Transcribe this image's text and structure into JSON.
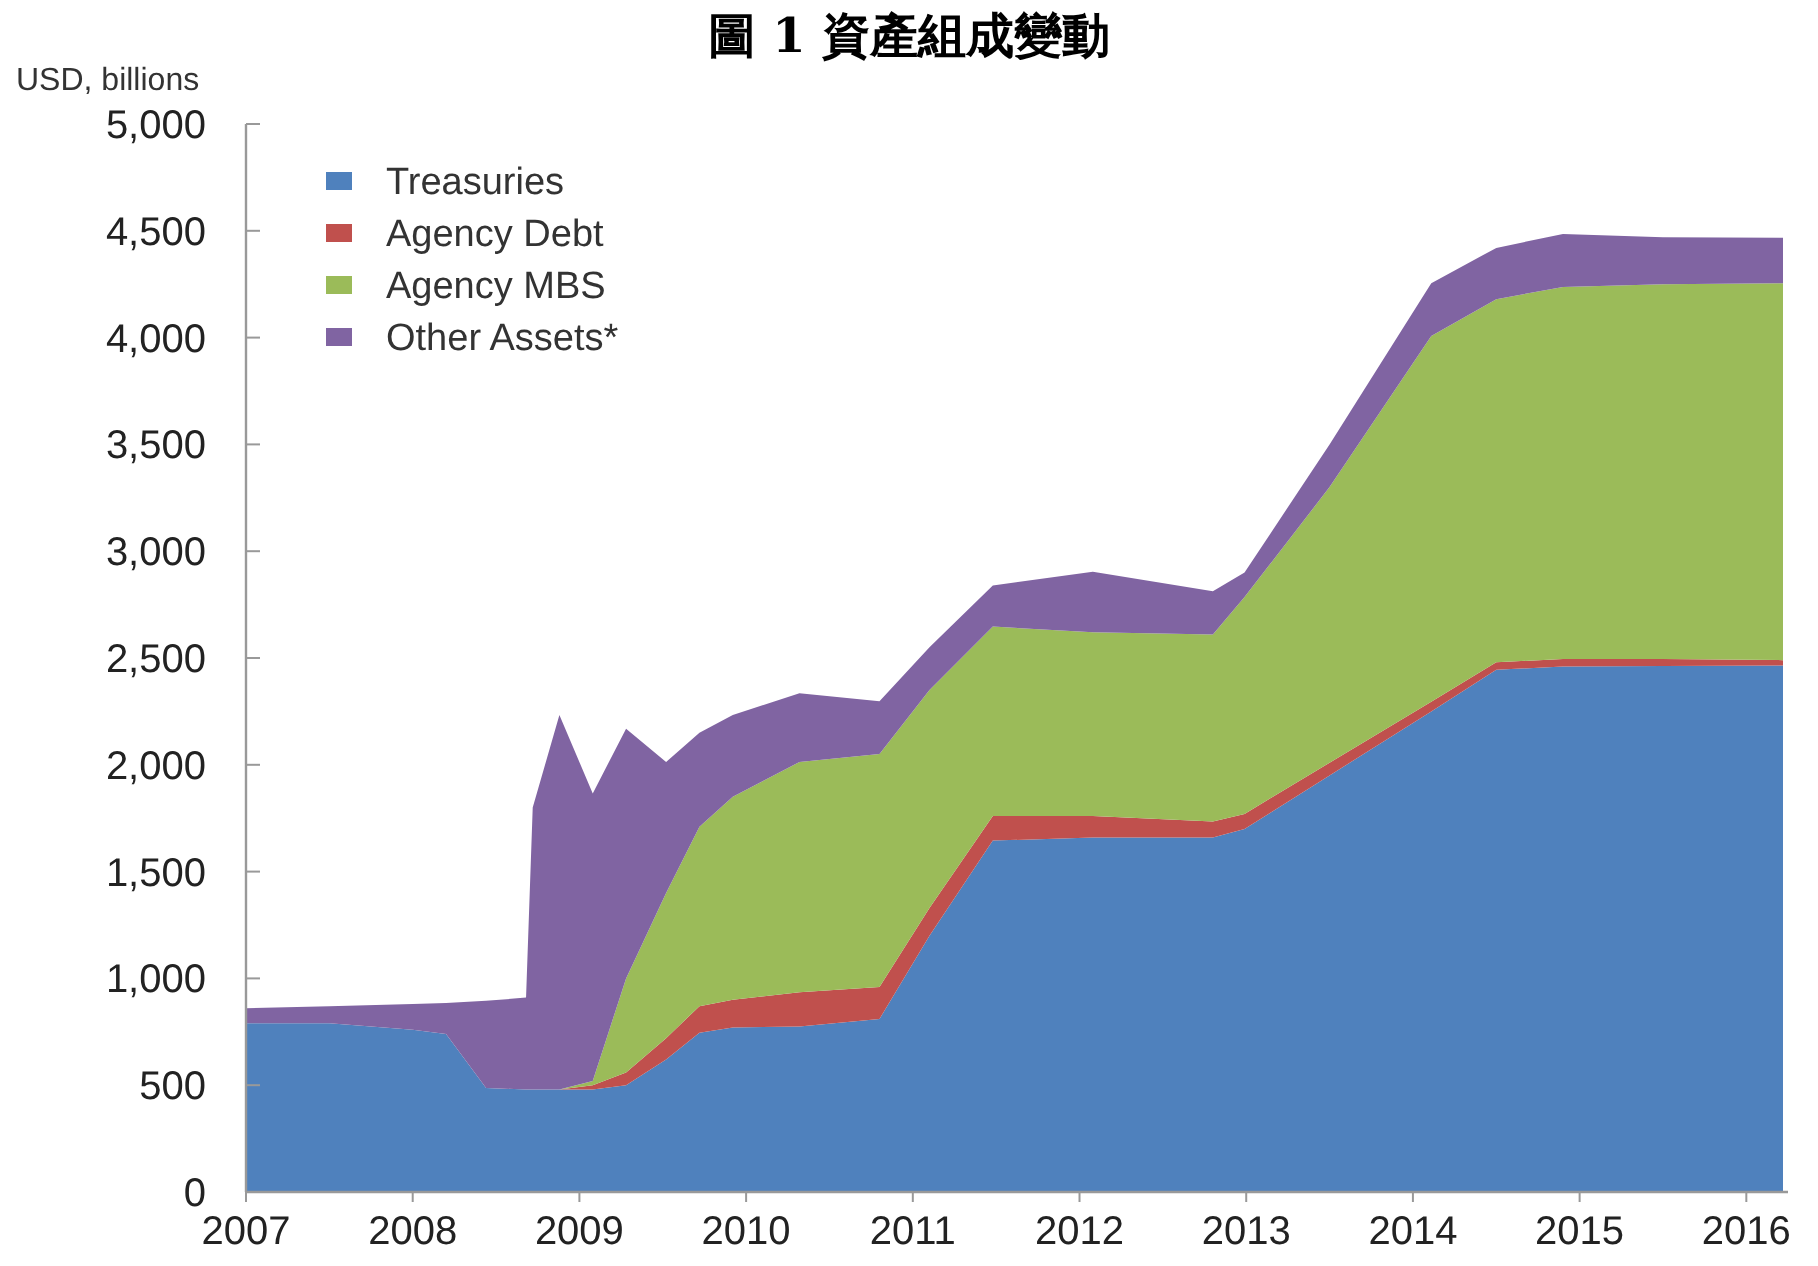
{
  "chart_data": {
    "type": "area",
    "stacked": true,
    "title": "圖 1 資產組成變動",
    "ylabel": "USD, billions",
    "x": [
      2007.0,
      2007.5,
      2008.0,
      2008.2,
      2008.44,
      2008.68,
      2008.72,
      2008.88,
      2009.08,
      2009.28,
      2009.52,
      2009.72,
      2009.92,
      2010.32,
      2010.8,
      2011.1,
      2011.48,
      2012.08,
      2012.8,
      2012.99,
      2013.5,
      2014.11,
      2014.5,
      2014.9,
      2015.5,
      2016.22
    ],
    "series": [
      {
        "name": "Treasuries",
        "color": "#4f81bd",
        "values": [
          790,
          790,
          760,
          740,
          487,
          480,
          480,
          480,
          480,
          500,
          620,
          745,
          770,
          775,
          810,
          1200,
          1645,
          1660,
          1660,
          1700,
          1950,
          2250,
          2445,
          2460,
          2462,
          2465
        ]
      },
      {
        "name": "Agency Debt",
        "color": "#c0504d",
        "values": [
          0,
          0,
          0,
          0,
          0,
          0,
          0,
          0,
          20,
          60,
          100,
          125,
          130,
          160,
          150,
          130,
          115,
          100,
          75,
          70,
          60,
          45,
          35,
          35,
          33,
          25
        ]
      },
      {
        "name": "Agency MBS",
        "color": "#9bbb59",
        "values": [
          0,
          0,
          0,
          0,
          0,
          0,
          0,
          0,
          20,
          440,
          680,
          840,
          950,
          1078,
          1090,
          1020,
          887,
          860,
          875,
          1015,
          1290,
          1712,
          1700,
          1742,
          1755,
          1765
        ]
      },
      {
        "name": "Other Assets*",
        "color": "#8064a2",
        "values": [
          70,
          80,
          120,
          145,
          408,
          430,
          1320,
          1753,
          1346,
          1169,
          613,
          440,
          383,
          322,
          248,
          200,
          193,
          284,
          202,
          115,
          200,
          248,
          240,
          248,
          220,
          212
        ]
      }
    ],
    "xlim": [
      2007,
      2016.25
    ],
    "xticks": [
      2007,
      2008,
      2009,
      2010,
      2011,
      2012,
      2013,
      2014,
      2015,
      2016
    ],
    "ylim": [
      0,
      5000
    ],
    "yticks": [
      0,
      500,
      {
        "value": 1000,
        "label": "1,000"
      },
      {
        "value": 1500,
        "label": "1,500"
      },
      {
        "value": 2000,
        "label": "2,000"
      },
      {
        "value": 2500,
        "label": "2,500"
      },
      {
        "value": 3000,
        "label": "3,000"
      },
      {
        "value": 3500,
        "label": "3,500"
      },
      {
        "value": 4000,
        "label": "4,000"
      },
      {
        "value": 4500,
        "label": "4,500"
      },
      {
        "value": 5000,
        "label": "5,000"
      }
    ],
    "grid": false,
    "legend": "top left"
  }
}
